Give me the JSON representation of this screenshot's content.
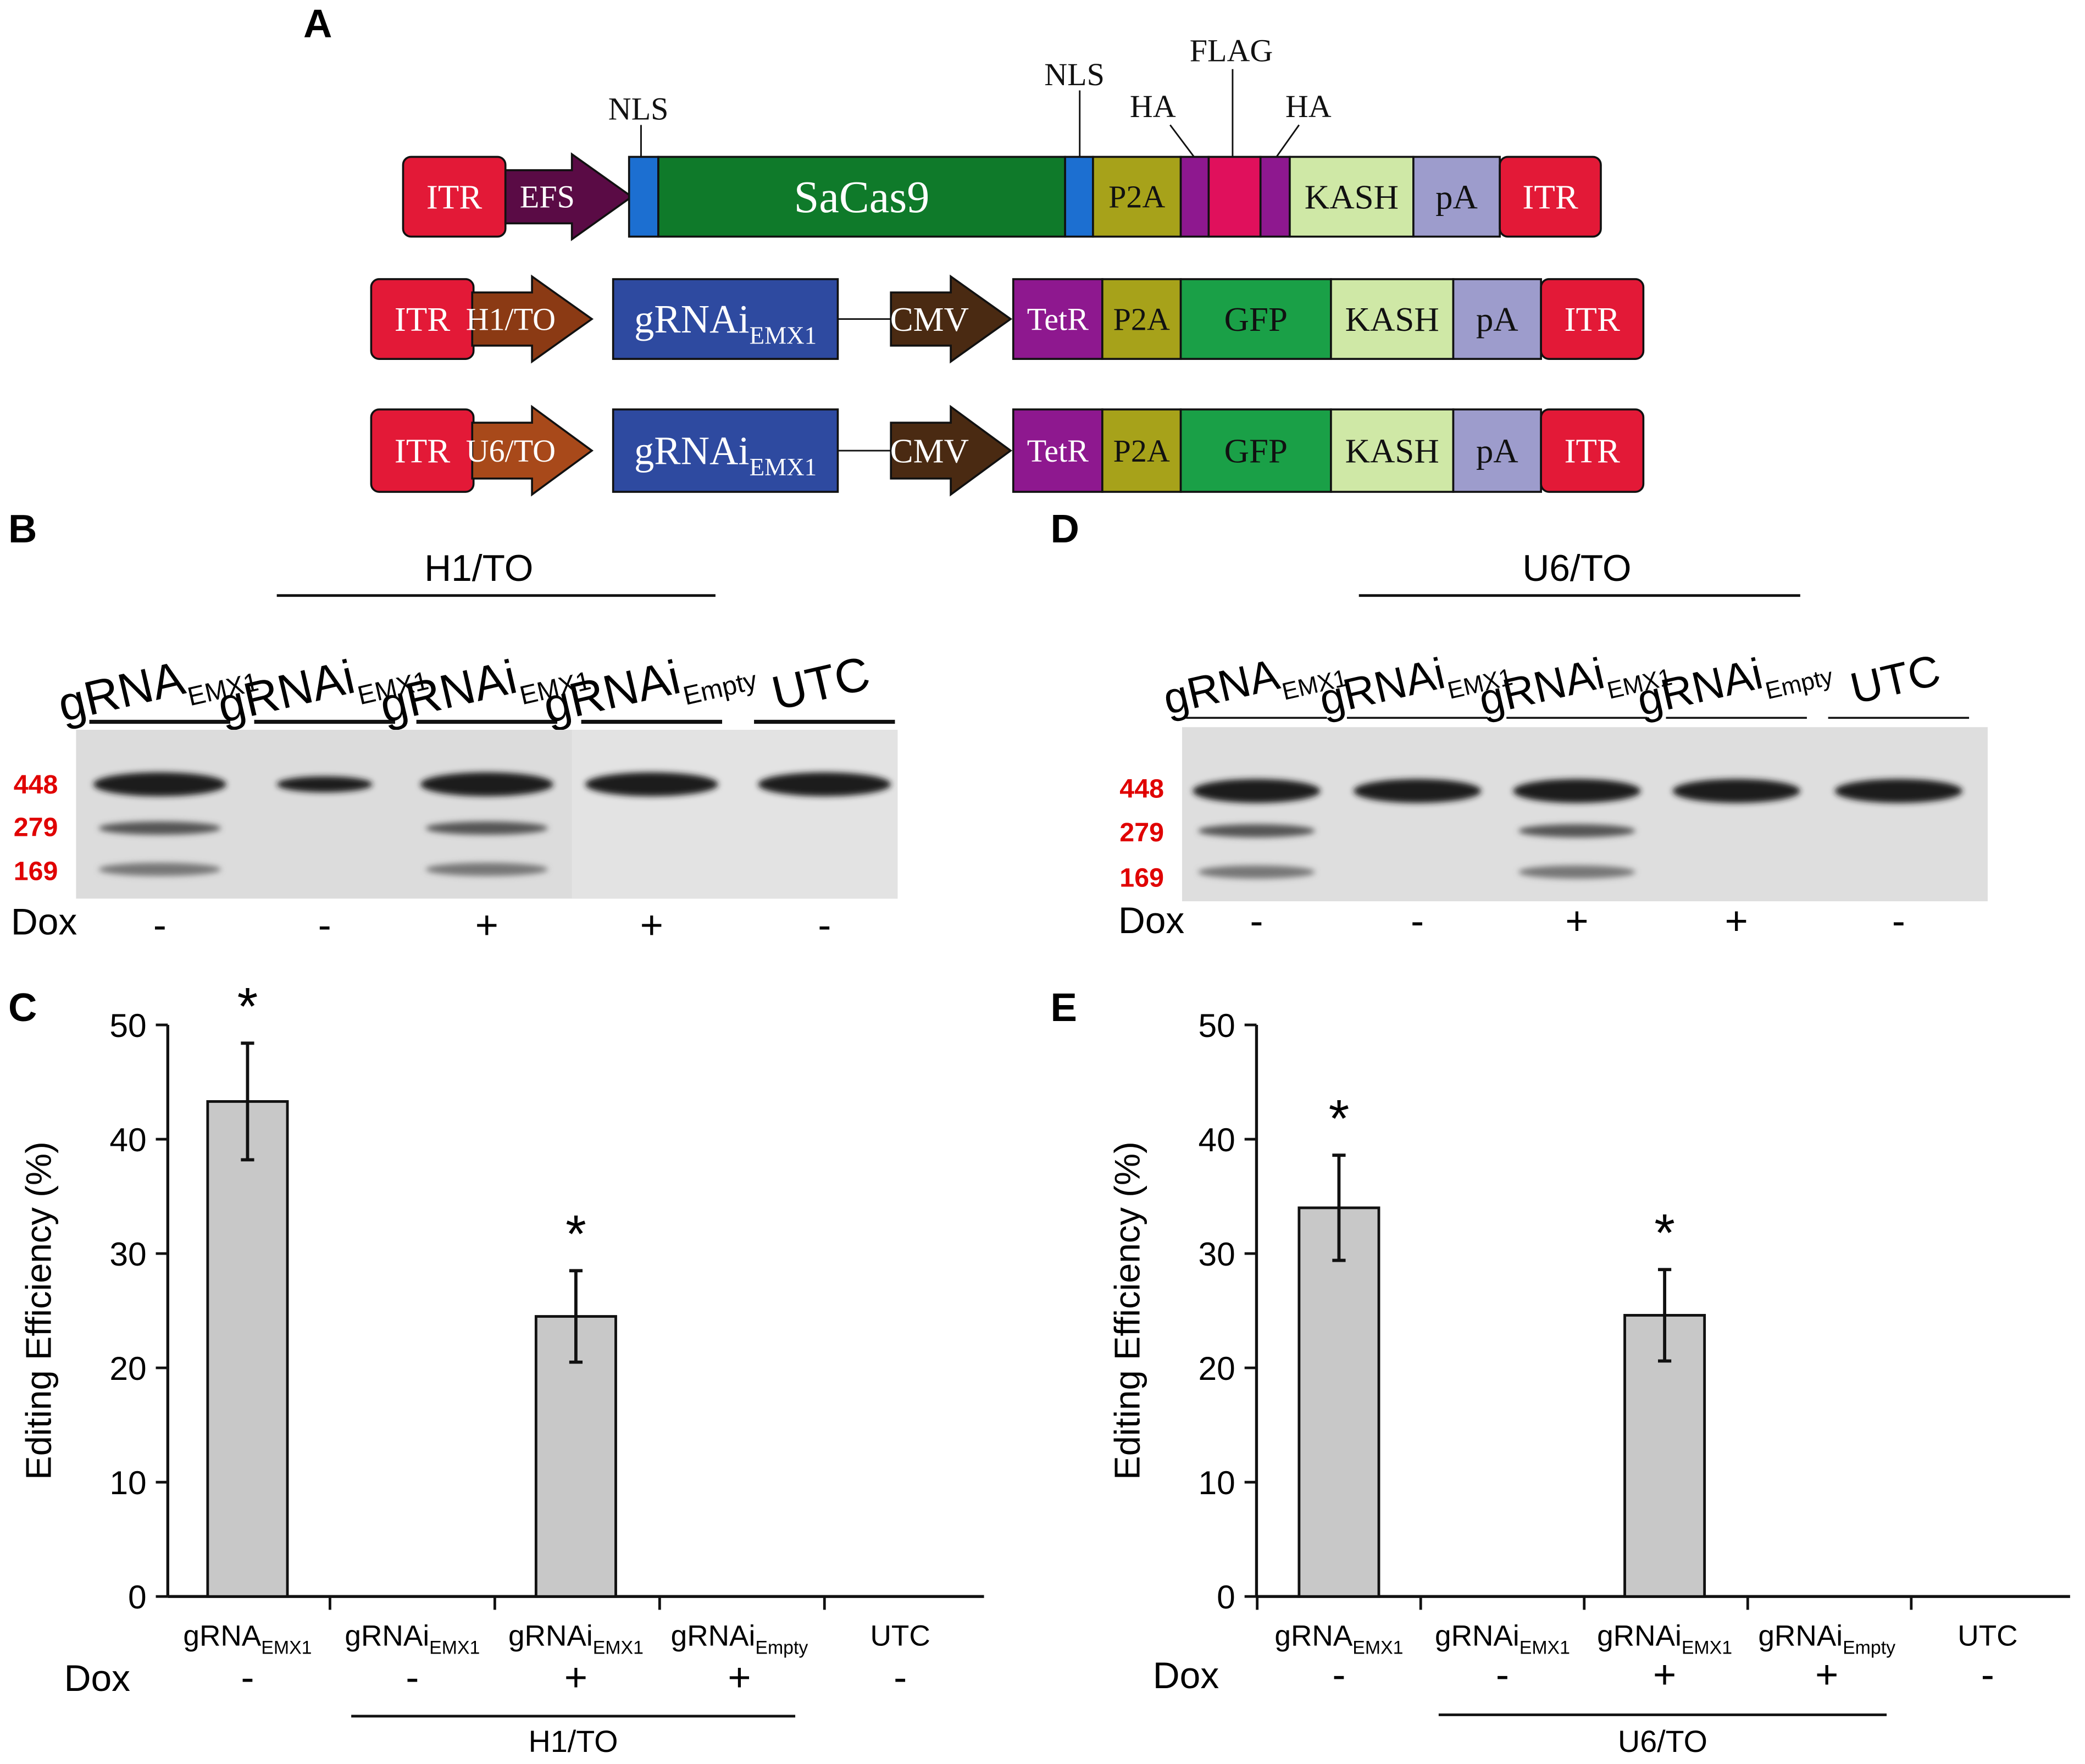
{
  "panels": {
    "A": "A",
    "B": "B",
    "C": "C",
    "D": "D",
    "E": "E"
  },
  "constructs": [
    {
      "elements": [
        {
          "label": "ITR",
          "kind": "box",
          "color": "#e31937"
        },
        {
          "label": "EFS",
          "kind": "arrow",
          "color": "#5a0b45"
        },
        {
          "label": "",
          "kind": "box",
          "color": "#1c6fd1"
        },
        {
          "label": "SaCas9",
          "kind": "box",
          "color": "#0f7a2a"
        },
        {
          "label": "",
          "kind": "box",
          "color": "#1c6fd1"
        },
        {
          "label": "P2A",
          "kind": "box",
          "color": "#a7a21a"
        },
        {
          "label": "",
          "kind": "box",
          "color": "#8e188f"
        },
        {
          "label": "",
          "kind": "box",
          "color": "#e0105c"
        },
        {
          "label": "",
          "kind": "box",
          "color": "#8e188f"
        },
        {
          "label": "KASH",
          "kind": "box",
          "color": "#cfe8a6"
        },
        {
          "label": "pA",
          "kind": "box",
          "color": "#9d9ccc"
        },
        {
          "label": "ITR",
          "kind": "box",
          "color": "#e31937"
        }
      ],
      "annotations": [
        "NLS",
        "NLS",
        "HA",
        "FLAG",
        "HA"
      ]
    },
    {
      "elements": [
        {
          "label": "ITR",
          "kind": "box",
          "color": "#e31937"
        },
        {
          "label": "H1/TO",
          "kind": "arrow",
          "color": "#8b3a14"
        },
        {
          "label": "gRNAi",
          "sub": "EMX1",
          "kind": "box",
          "color": "#2e4aa0"
        },
        {
          "label": "CMV",
          "kind": "arrow",
          "color": "#4a2a12"
        },
        {
          "label": "TetR",
          "kind": "box",
          "color": "#8e188f"
        },
        {
          "label": "P2A",
          "kind": "box",
          "color": "#a7a21a"
        },
        {
          "label": "GFP",
          "kind": "box",
          "color": "#1aa047"
        },
        {
          "label": "KASH",
          "kind": "box",
          "color": "#cfe8a6"
        },
        {
          "label": "pA",
          "kind": "box",
          "color": "#9d9ccc"
        },
        {
          "label": "ITR",
          "kind": "box",
          "color": "#e31937"
        }
      ]
    },
    {
      "elements": [
        {
          "label": "ITR",
          "kind": "box",
          "color": "#e31937"
        },
        {
          "label": "U6/TO",
          "kind": "arrow",
          "color": "#a8491a"
        },
        {
          "label": "gRNAi",
          "sub": "EMX1",
          "kind": "box",
          "color": "#2e4aa0"
        },
        {
          "label": "CMV",
          "kind": "arrow",
          "color": "#4a2a12"
        },
        {
          "label": "TetR",
          "kind": "box",
          "color": "#8e188f"
        },
        {
          "label": "P2A",
          "kind": "box",
          "color": "#a7a21a"
        },
        {
          "label": "GFP",
          "kind": "box",
          "color": "#1aa047"
        },
        {
          "label": "KASH",
          "kind": "box",
          "color": "#cfe8a6"
        },
        {
          "label": "pA",
          "kind": "box",
          "color": "#9d9ccc"
        },
        {
          "label": "ITR",
          "kind": "box",
          "color": "#e31937"
        }
      ]
    }
  ],
  "gels": [
    {
      "group_label": "H1/TO",
      "lanes": [
        {
          "name": "gRNA",
          "sub": "EMX1",
          "dox": "-",
          "cleaved": true
        },
        {
          "name": "gRNAi",
          "sub": "EMX1",
          "dox": "-",
          "cleaved": false
        },
        {
          "name": "gRNAi",
          "sub": "EMX1",
          "dox": "+",
          "cleaved": true
        },
        {
          "name": "gRNAi",
          "sub": "Empty",
          "dox": "+",
          "cleaved": false
        },
        {
          "name": "UTC",
          "sub": "",
          "dox": "-",
          "cleaved": false
        }
      ],
      "markers": [
        "448",
        "279",
        "169"
      ],
      "dox_label": "Dox"
    },
    {
      "group_label": "U6/TO",
      "lanes": [
        {
          "name": "gRNA",
          "sub": "EMX1",
          "dox": "-",
          "cleaved": true
        },
        {
          "name": "gRNAi",
          "sub": "EMX1",
          "dox": "-",
          "cleaved": false
        },
        {
          "name": "gRNAi",
          "sub": "EMX1",
          "dox": "+",
          "cleaved": true
        },
        {
          "name": "gRNAi",
          "sub": "Empty",
          "dox": "+",
          "cleaved": false
        },
        {
          "name": "UTC",
          "sub": "",
          "dox": "-",
          "cleaved": false
        }
      ],
      "markers": [
        "448",
        "279",
        "169"
      ],
      "dox_label": "Dox"
    }
  ],
  "chart_data": [
    {
      "type": "bar",
      "categories": [
        {
          "name": "gRNA",
          "sub": "EMX1"
        },
        {
          "name": "gRNAi",
          "sub": "EMX1"
        },
        {
          "name": "gRNAi",
          "sub": "EMX1"
        },
        {
          "name": "gRNAi",
          "sub": "Empty"
        },
        {
          "name": "UTC",
          "sub": ""
        }
      ],
      "values": [
        43.3,
        0,
        24.5,
        0,
        0
      ],
      "errors": [
        5.1,
        0,
        4.0,
        0,
        0
      ],
      "significance": [
        "*",
        "",
        "*",
        "",
        ""
      ],
      "dox": [
        "-",
        "-",
        "+",
        "+",
        "-"
      ],
      "dox_label": "Dox",
      "group_label": "H1/TO",
      "ylabel": "Editing Efficiency (%)",
      "ylim": [
        0,
        50
      ],
      "yticks": [
        0,
        10,
        20,
        30,
        40,
        50
      ],
      "bar_color": "#c8c8c8"
    },
    {
      "type": "bar",
      "categories": [
        {
          "name": "gRNA",
          "sub": "EMX1"
        },
        {
          "name": "gRNAi",
          "sub": "EMX1"
        },
        {
          "name": "gRNAi",
          "sub": "EMX1"
        },
        {
          "name": "gRNAi",
          "sub": "Empty"
        },
        {
          "name": "UTC",
          "sub": ""
        }
      ],
      "values": [
        34.0,
        0,
        24.6,
        0,
        0
      ],
      "errors": [
        4.6,
        0,
        4.0,
        0,
        0
      ],
      "significance": [
        "*",
        "",
        "*",
        "",
        ""
      ],
      "dox": [
        "-",
        "-",
        "+",
        "+",
        "-"
      ],
      "dox_label": "Dox",
      "group_label": "U6/TO",
      "ylabel": "Editing Efficiency (%)",
      "ylim": [
        0,
        50
      ],
      "yticks": [
        0,
        10,
        20,
        30,
        40,
        50
      ],
      "bar_color": "#c8c8c8"
    }
  ]
}
